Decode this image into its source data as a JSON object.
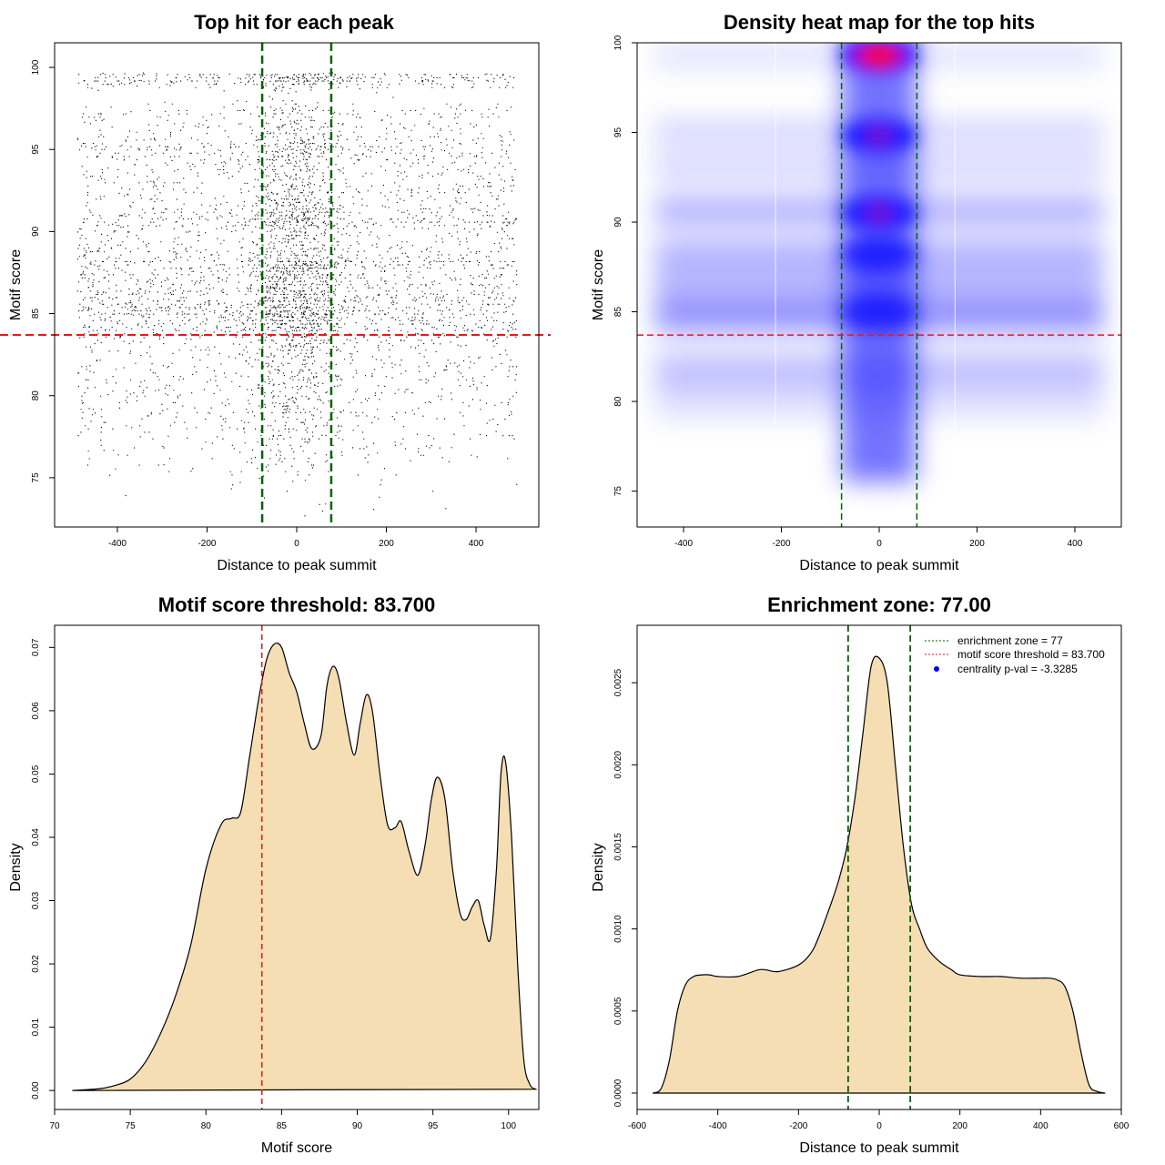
{
  "chart_data": [
    {
      "type": "scatter",
      "title": "Top hit for each peak",
      "xlabel": "Distance to peak summit",
      "ylabel": "Motif score",
      "xlim": [
        -540,
        540
      ],
      "ylim": [
        72,
        101.5
      ],
      "xticks": [
        "-400",
        "-200",
        "0",
        "200",
        "400"
      ],
      "yticks": [
        "75",
        "80",
        "85",
        "90",
        "95",
        "100"
      ],
      "enrichment_zone": [
        -77,
        77
      ],
      "score_threshold": 83.7,
      "x_range": [
        -490,
        490
      ],
      "colors": {
        "points": "#000000",
        "zone_line": "#006400",
        "threshold_line": "#e31a1c"
      }
    },
    {
      "type": "heatmap",
      "title": "Density heat map for the top hits",
      "xlabel": "Distance to peak summit",
      "ylabel": "Motif score",
      "xlim": [
        -495,
        495
      ],
      "ylim": [
        73,
        100
      ],
      "xticks": [
        "-400",
        "-200",
        "0",
        "200",
        "400"
      ],
      "yticks": [
        "75",
        "80",
        "85",
        "90",
        "95",
        "100"
      ],
      "enrichment_zone": [
        -77,
        77
      ],
      "score_threshold": 83.7,
      "hotspots": [
        {
          "x": 0,
          "y": 99.3,
          "intensity": 1.0
        },
        {
          "x": 0,
          "y": 94.8,
          "intensity": 0.85
        },
        {
          "x": 0,
          "y": 90.5,
          "intensity": 0.8
        },
        {
          "x": 0,
          "y": 88.2,
          "intensity": 0.7
        },
        {
          "x": 0,
          "y": 85.0,
          "intensity": 0.6
        }
      ],
      "score_bands": [
        {
          "y": 84.8,
          "intensity": 0.45
        },
        {
          "y": 86.5,
          "intensity": 0.3
        },
        {
          "y": 88.2,
          "intensity": 0.3
        },
        {
          "y": 90.6,
          "intensity": 0.3
        },
        {
          "y": 93.0,
          "intensity": 0.15
        },
        {
          "y": 95.0,
          "intensity": 0.15
        },
        {
          "y": 81.5,
          "intensity": 0.15
        },
        {
          "y": 99.3,
          "intensity": 0.1
        }
      ],
      "colors": {
        "low": "#ffffff",
        "mid": "#0000ff",
        "high": "#ff0000",
        "zone_line": "#006400",
        "threshold_line": "#e31a1c"
      }
    },
    {
      "type": "area",
      "title": "Motif score threshold: 83.700",
      "xlabel": "Motif score",
      "ylabel": "Density",
      "xlim": [
        70,
        102
      ],
      "ylim": [
        -0.003,
        0.0735
      ],
      "xticks": [
        "70",
        "75",
        "80",
        "85",
        "90",
        "95",
        "100"
      ],
      "yticks": [
        "0.00",
        "0.01",
        "0.02",
        "0.03",
        "0.04",
        "0.05",
        "0.06",
        "0.07"
      ],
      "x": [
        71.2,
        73,
        74,
        75,
        76,
        77,
        78,
        79,
        80,
        81,
        81.7,
        82.3,
        82.9,
        83.5,
        84,
        84.5,
        85,
        85.5,
        86,
        86.5,
        87,
        87.6,
        88,
        88.4,
        88.8,
        89.3,
        89.8,
        90.2,
        90.6,
        91,
        91.5,
        92,
        92.5,
        92.9,
        93.4,
        94,
        94.5,
        94.9,
        95.3,
        95.8,
        96.3,
        96.8,
        97.2,
        97.6,
        98,
        98.4,
        98.8,
        99.2,
        99.5,
        99.8,
        100.2,
        100.6,
        101,
        101.4,
        101.8
      ],
      "density": [
        0,
        0.0003,
        0.0008,
        0.0018,
        0.0045,
        0.009,
        0.015,
        0.023,
        0.035,
        0.042,
        0.043,
        0.044,
        0.053,
        0.062,
        0.068,
        0.0705,
        0.07,
        0.066,
        0.063,
        0.058,
        0.054,
        0.056,
        0.064,
        0.067,
        0.065,
        0.058,
        0.053,
        0.058,
        0.0625,
        0.06,
        0.05,
        0.042,
        0.0415,
        0.0425,
        0.038,
        0.034,
        0.039,
        0.046,
        0.0495,
        0.046,
        0.035,
        0.028,
        0.027,
        0.029,
        0.03,
        0.026,
        0.024,
        0.035,
        0.05,
        0.052,
        0.04,
        0.02,
        0.005,
        0.001,
        0.0002
      ],
      "threshold": 83.7,
      "colors": {
        "fill": "#f5deb3",
        "line": "#000000",
        "threshold_line": "#e31a1c"
      }
    },
    {
      "type": "area",
      "title": "Enrichment zone: 77.00",
      "xlabel": "Distance to peak summit",
      "ylabel": "Density",
      "xlim": [
        -600,
        600
      ],
      "ylim": [
        -0.0001,
        0.00285
      ],
      "xticks": [
        "-600",
        "-400",
        "-200",
        "0",
        "200",
        "400",
        "600"
      ],
      "yticks": [
        "0.0000",
        "0.0005",
        "0.0010",
        "0.0015",
        "0.0020",
        "0.0025"
      ],
      "x": [
        -560,
        -540,
        -520,
        -500,
        -480,
        -460,
        -440,
        -420,
        -400,
        -350,
        -300,
        -280,
        -250,
        -200,
        -170,
        -150,
        -120,
        -100,
        -80,
        -60,
        -40,
        -20,
        0,
        20,
        40,
        60,
        80,
        100,
        120,
        150,
        180,
        200,
        250,
        300,
        350,
        400,
        420,
        440,
        460,
        480,
        500,
        520,
        540,
        560
      ],
      "density": [
        0,
        3e-05,
        0.0002,
        0.0005,
        0.00066,
        0.00071,
        0.00072,
        0.00072,
        0.00071,
        0.00071,
        0.00075,
        0.00075,
        0.00074,
        0.00078,
        0.00085,
        0.00095,
        0.00115,
        0.0013,
        0.0015,
        0.0018,
        0.0022,
        0.0026,
        0.00265,
        0.0025,
        0.002,
        0.0015,
        0.00115,
        0.001,
        0.00088,
        0.0008,
        0.00075,
        0.00072,
        0.00071,
        0.00071,
        0.0007,
        0.0007,
        0.0007,
        0.00069,
        0.00065,
        0.0005,
        0.00025,
        5e-05,
        1e-05,
        0
      ],
      "enrichment_zone": [
        -77,
        77
      ],
      "legend": {
        "position": "top-right",
        "items": [
          {
            "label": "enrichment zone = 77",
            "kind": "dotted-line",
            "color": "#006400"
          },
          {
            "label": "motif score threshold = 83.700",
            "kind": "dotted-line",
            "color": "#e31a1c"
          },
          {
            "label": "centrality p-val = -3.3285",
            "kind": "point",
            "color": "#0000ff"
          }
        ]
      },
      "colors": {
        "fill": "#f5deb3",
        "line": "#000000",
        "zone_line": "#006400"
      }
    }
  ]
}
